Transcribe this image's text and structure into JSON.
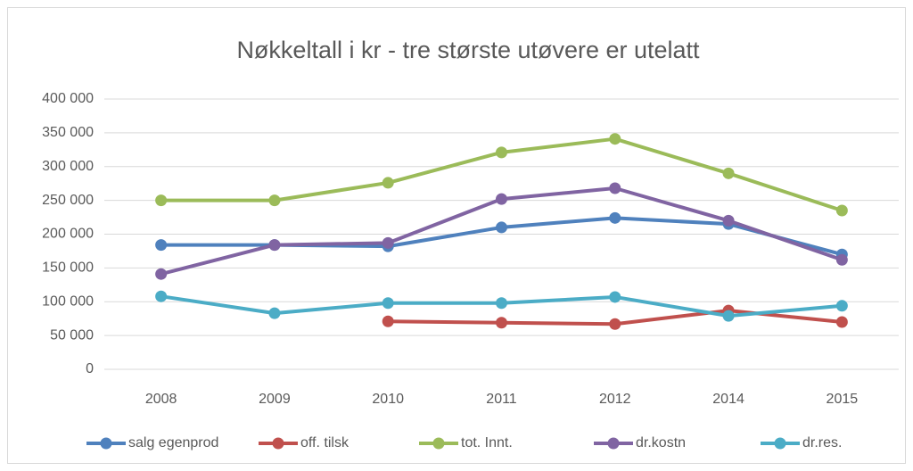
{
  "chart_data": {
    "type": "line",
    "title": "Nøkkeltall i kr - tre største utøvere er utelatt",
    "categories": [
      "2008",
      "2009",
      "2010",
      "2011",
      "2012",
      "2014",
      "2015"
    ],
    "series": [
      {
        "name": "salg egenprod",
        "color": "#4f81bd",
        "values": [
          184000,
          184000,
          182000,
          210000,
          224000,
          215000,
          170000
        ]
      },
      {
        "name": "off. tilsk",
        "color": "#c0504d",
        "values": [
          null,
          null,
          71000,
          69000,
          67000,
          87000,
          70000
        ]
      },
      {
        "name": "tot. Innt.",
        "color": "#9bbb59",
        "values": [
          250000,
          250000,
          276000,
          321000,
          341000,
          290000,
          235000
        ]
      },
      {
        "name": "dr.kostn",
        "color": "#8064a2",
        "values": [
          141000,
          184000,
          187000,
          252000,
          268000,
          220000,
          162000
        ]
      },
      {
        "name": "dr.res.",
        "color": "#4bacc6",
        "values": [
          108000,
          83000,
          98000,
          98000,
          107000,
          79000,
          94000
        ]
      }
    ],
    "ylim": [
      0,
      400000
    ],
    "yticks": [
      0,
      {
        "value": 50000,
        "label": "50 000"
      },
      {
        "value": 100000,
        "label": "100 000"
      },
      {
        "value": 150000,
        "label": "150 000"
      },
      {
        "value": 200000,
        "label": "200 000"
      },
      {
        "value": 250000,
        "label": "250 000"
      },
      {
        "value": 300000,
        "label": "300 000"
      },
      {
        "value": 350000,
        "label": "350 000"
      },
      {
        "value": 400000,
        "label": "400 000"
      }
    ],
    "grid": true,
    "legend": "bottom"
  }
}
